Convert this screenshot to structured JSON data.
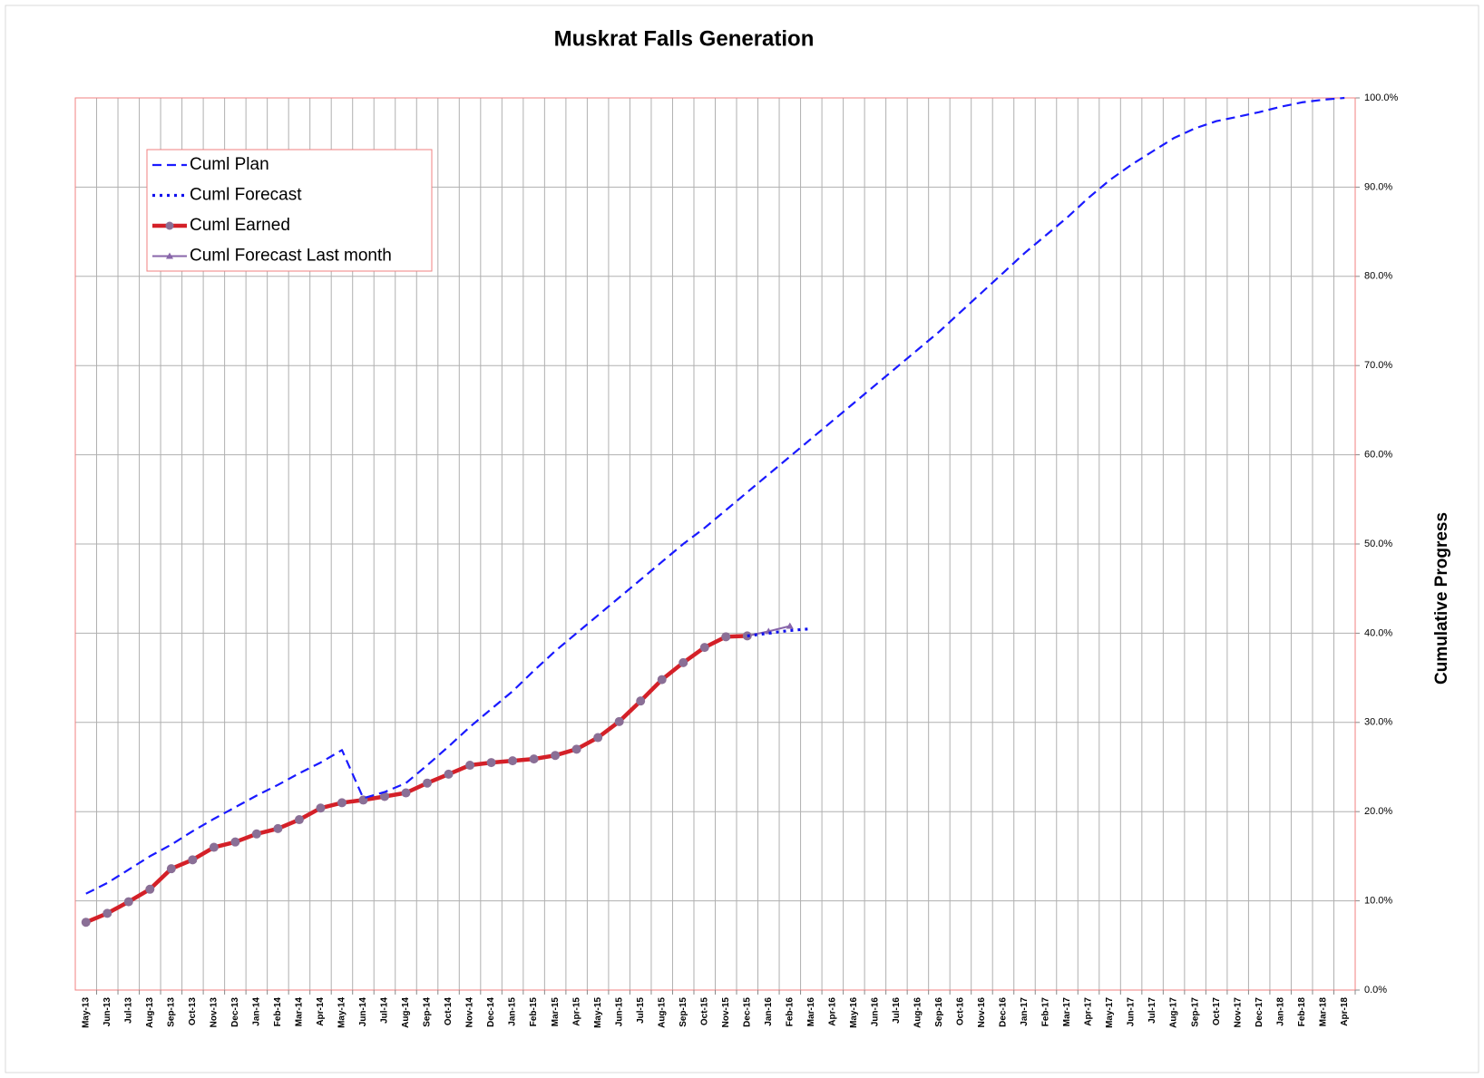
{
  "chart_data": {
    "type": "line",
    "title": "Muskrat Falls Generation",
    "y_label": "Cumulative Progress",
    "categories": [
      "May-13",
      "Jun-13",
      "Jul-13",
      "Aug-13",
      "Sep-13",
      "Oct-13",
      "Nov-13",
      "Dec-13",
      "Jan-14",
      "Feb-14",
      "Mar-14",
      "Apr-14",
      "May-14",
      "Jun-14",
      "Jul-14",
      "Aug-14",
      "Sep-14",
      "Oct-14",
      "Nov-14",
      "Dec-14",
      "Jan-15",
      "Feb-15",
      "Mar-15",
      "Apr-15",
      "May-15",
      "Jun-15",
      "Jul-15",
      "Aug-15",
      "Sep-15",
      "Oct-15",
      "Nov-15",
      "Dec-15",
      "Jan-16",
      "Feb-16",
      "Mar-16",
      "Apr-16",
      "May-16",
      "Jun-16",
      "Jul-16",
      "Aug-16",
      "Sep-16",
      "Oct-16",
      "Nov-16",
      "Dec-16",
      "Jan-17",
      "Feb-17",
      "Mar-17",
      "Apr-17",
      "May-17",
      "Jun-17",
      "Jul-17",
      "Aug-17",
      "Sep-17",
      "Oct-17",
      "Nov-17",
      "Dec-17",
      "Jan-18",
      "Feb-18",
      "Mar-18",
      "Apr-18"
    ],
    "series": [
      {
        "name": "Cuml Plan",
        "color": "#1a1aff",
        "line_style": "dashed",
        "values": [
          10.8,
          12.0,
          13.5,
          15.0,
          16.3,
          17.8,
          19.2,
          20.5,
          21.8,
          23.0,
          24.3,
          25.5,
          26.9,
          21.5,
          22.2,
          23.2,
          25.2,
          27.3,
          29.5,
          31.5,
          33.5,
          35.8,
          38.0,
          40.0,
          42.0,
          44.0,
          46.0,
          48.0,
          50.0,
          51.8,
          53.8,
          55.8,
          57.8,
          59.8,
          61.8,
          63.8,
          65.8,
          67.8,
          69.8,
          71.8,
          73.8,
          76.0,
          78.2,
          80.4,
          82.6,
          84.6,
          86.6,
          88.8,
          90.8,
          92.5,
          94.0,
          95.5,
          96.6,
          97.4,
          97.9,
          98.4,
          99.0,
          99.5,
          99.8,
          100.0
        ]
      },
      {
        "name": "Cuml Forecast",
        "color": "#1010ee",
        "line_style": "dotted",
        "values": [
          null,
          null,
          null,
          null,
          null,
          null,
          null,
          null,
          null,
          null,
          null,
          null,
          null,
          null,
          null,
          null,
          null,
          null,
          null,
          null,
          null,
          null,
          null,
          null,
          null,
          null,
          null,
          null,
          null,
          null,
          null,
          39.7,
          40.0,
          40.3,
          40.5,
          null,
          null,
          null,
          null,
          null,
          null,
          null,
          null,
          null,
          null,
          null,
          null,
          null,
          null,
          null,
          null,
          null,
          null,
          null,
          null,
          null,
          null,
          null,
          null,
          null
        ]
      },
      {
        "name": "Cuml Earned",
        "color": "#d42028",
        "line_style": "solid",
        "marker": "circle",
        "marker_color": "#8a6f96",
        "values": [
          7.6,
          8.6,
          9.9,
          11.3,
          13.6,
          14.6,
          16.0,
          16.6,
          17.5,
          18.1,
          19.1,
          20.4,
          21.0,
          21.3,
          21.7,
          22.1,
          23.2,
          24.2,
          25.2,
          25.5,
          25.7,
          25.9,
          26.3,
          27.0,
          28.3,
          30.1,
          32.4,
          34.8,
          36.7,
          38.4,
          39.6,
          39.7,
          null,
          null,
          null,
          null,
          null,
          null,
          null,
          null,
          null,
          null,
          null,
          null,
          null,
          null,
          null,
          null,
          null,
          null,
          null,
          null,
          null,
          null,
          null,
          null,
          null,
          null,
          null,
          null
        ]
      },
      {
        "name": "Cuml Forecast Last month",
        "color": "#8866aa",
        "line_style": "solid",
        "marker": "triangle",
        "values": [
          7.6,
          8.6,
          9.9,
          11.3,
          13.6,
          14.6,
          16.0,
          16.6,
          17.5,
          18.1,
          19.1,
          20.4,
          21.0,
          21.3,
          21.7,
          22.1,
          23.2,
          24.2,
          25.2,
          25.5,
          25.7,
          25.9,
          26.3,
          27.0,
          28.3,
          30.1,
          32.4,
          34.8,
          36.7,
          38.4,
          39.6,
          39.7,
          40.2,
          40.8,
          null,
          null,
          null,
          null,
          null,
          null,
          null,
          null,
          null,
          null,
          null,
          null,
          null,
          null,
          null,
          null,
          null,
          null,
          null,
          null,
          null,
          null,
          null,
          null,
          null,
          null
        ]
      }
    ],
    "ylim": [
      0,
      100
    ],
    "yticks": [
      {
        "value": 0,
        "label": "0.0%"
      },
      {
        "value": 10,
        "label": "10.0%"
      },
      {
        "value": 20,
        "label": "20.0%"
      },
      {
        "value": 30,
        "label": "30.0%"
      },
      {
        "value": 40,
        "label": "40.0%"
      },
      {
        "value": 50,
        "label": "50.0%"
      },
      {
        "value": 60,
        "label": "60.0%"
      },
      {
        "value": 70,
        "label": "70.0%"
      },
      {
        "value": 80,
        "label": "80.0%"
      },
      {
        "value": 90,
        "label": "90.0%"
      },
      {
        "value": 100,
        "label": "100.0%"
      }
    ],
    "y_axis_side": "right",
    "grid": true,
    "legend": "upper left"
  }
}
